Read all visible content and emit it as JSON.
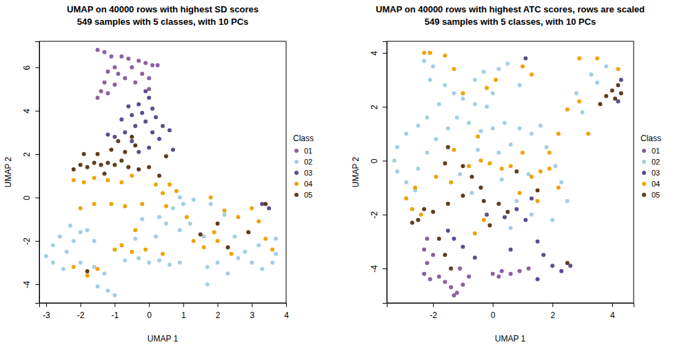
{
  "chart_data": [
    {
      "type": "scatter",
      "title": "UMAP on 40000 rows with highest SD scores",
      "subtitle": "549 samples with 5 classes, with 10 PCs",
      "x_label": "UMAP 1",
      "y_label": "UMAP 2",
      "legend_title": "Class",
      "legend": "right",
      "xlim": [
        -3.2,
        4.0
      ],
      "ylim": [
        -4.86,
        7.2
      ],
      "xticks": [
        -3,
        -2,
        -1,
        0,
        1,
        2,
        3,
        4
      ],
      "yticks": [
        -4,
        -2,
        0,
        2,
        4,
        6
      ],
      "series": [
        {
          "name": "01",
          "color": "#8A5FA5",
          "marker": "circle",
          "x": [
            -1.5,
            -1.3,
            -1.1,
            -0.8,
            -0.6,
            -0.3,
            -0.1,
            0.1,
            0.25,
            -1.0,
            -0.5,
            -1.2,
            -0.9,
            -0.2,
            0.0,
            -1.3,
            -1.0,
            -0.4,
            -1.4,
            -1.5,
            -1.2,
            0.0,
            -0.7
          ],
          "values": [
            6.8,
            6.7,
            6.5,
            6.5,
            6.4,
            6.3,
            6.2,
            6.1,
            6.1,
            6.0,
            6.0,
            5.8,
            5.7,
            5.7,
            5.5,
            5.3,
            5.2,
            5.3,
            4.9,
            4.6,
            4.8,
            5.0,
            5.5
          ]
        },
        {
          "name": "02",
          "color": "#A6CEE3",
          "marker": "circle",
          "x": [
            -3.0,
            -2.8,
            -2.6,
            -2.4,
            -2.2,
            -2.0,
            -1.8,
            -1.6,
            -2.8,
            -2.5,
            -2.0,
            -1.6,
            -1.3,
            -1.2,
            -1.0,
            -1.5,
            -0.7,
            -0.3,
            0.0,
            0.3,
            0.6,
            0.9,
            0.2,
            -0.4,
            0.5,
            0.9,
            0.3,
            -0.2,
            0.7,
            1.0,
            1.3,
            0.9,
            1.2,
            1.7,
            1.7,
            2.0,
            2.3,
            2.6,
            2.8,
            3.0,
            3.3,
            3.6,
            3.7,
            3.2,
            2.5,
            2.2,
            1.8,
            1.6,
            -2.3,
            3.7
          ],
          "values": [
            -2.7,
            -2.2,
            -1.8,
            -2.5,
            -2.0,
            -1.6,
            -1.5,
            -2.0,
            -3.0,
            -3.3,
            -3.0,
            -3.2,
            -3.5,
            -4.3,
            -4.5,
            -4.1,
            -2.9,
            -2.8,
            -3.0,
            -2.9,
            -3.1,
            -3.0,
            -1.8,
            -1.9,
            -1.2,
            -1.5,
            -0.9,
            -1.0,
            -0.5,
            -0.3,
            -0.1,
            0.0,
            -1.2,
            -3.2,
            -4.0,
            -3.0,
            -3.5,
            -2.8,
            -2.5,
            -3.0,
            -3.3,
            -3.0,
            -2.6,
            -2.2,
            -1.8,
            -0.8,
            -0.3,
            -1.8,
            -1.3,
            -1.9
          ]
        },
        {
          "name": "03",
          "color": "#5E4B91",
          "marker": "circle",
          "x": [
            -0.1,
            0.0,
            -0.3,
            -0.6,
            0.1,
            -0.2,
            -0.5,
            0.2,
            -0.8,
            -0.1,
            0.4,
            -0.4,
            0.6,
            -0.7,
            0.1,
            -1.0,
            0.3,
            -0.5,
            -1.2,
            0.0,
            0.7,
            -0.3,
            3.3,
            3.5
          ],
          "values": [
            4.9,
            4.6,
            4.3,
            4.2,
            4.1,
            3.9,
            3.8,
            3.7,
            3.6,
            3.5,
            3.3,
            3.3,
            3.1,
            3.0,
            3.0,
            2.8,
            2.7,
            2.6,
            2.9,
            2.3,
            2.2,
            2.1,
            -0.3,
            -0.5
          ]
        },
        {
          "name": "04",
          "color": "#F0A30A",
          "marker": "circle",
          "x": [
            -2.2,
            -1.9,
            -1.6,
            -1.2,
            -0.8,
            -0.5,
            0.2,
            0.6,
            0.8,
            0.4,
            -2.0,
            -1.6,
            -1.1,
            -0.7,
            -0.2,
            0.5,
            1.1,
            1.8,
            2.2,
            2.6,
            3.0,
            3.6,
            3.4,
            2.0,
            1.6,
            1.3,
            -1.0,
            -0.5,
            -0.1,
            0.4,
            -2.2,
            -1.8,
            -1.5,
            -0.8,
            2.4,
            3.2,
            1.9,
            -0.4
          ],
          "values": [
            0.8,
            0.7,
            0.9,
            0.8,
            0.7,
            1.0,
            0.6,
            0.6,
            0.3,
            0.2,
            -0.5,
            -0.3,
            -0.3,
            -0.4,
            -0.3,
            -0.4,
            -0.9,
            0.0,
            -0.6,
            -0.9,
            -0.5,
            -2.4,
            -1.9,
            -2.0,
            -2.3,
            -2.0,
            -2.4,
            -2.5,
            -2.4,
            -2.6,
            -3.2,
            -3.6,
            -3.3,
            -2.2,
            -2.6,
            -1.1,
            -1.6,
            -1.5
          ]
        },
        {
          "name": "05",
          "color": "#5C3D1E",
          "marker": "circle",
          "x": [
            -2.2,
            -2.0,
            -1.8,
            -1.6,
            -1.4,
            -1.2,
            -1.0,
            -0.8,
            -0.6,
            -0.3,
            0.0,
            -1.5,
            -1.9,
            -1.1,
            -0.7,
            -0.4,
            -0.9,
            -0.5,
            0.3,
            0.5,
            -1.3,
            1.5,
            2.0,
            2.9,
            3.4,
            -1.8,
            2.3
          ],
          "values": [
            1.3,
            1.5,
            1.4,
            1.6,
            1.5,
            1.6,
            1.5,
            1.7,
            1.4,
            1.3,
            1.4,
            2.0,
            2.0,
            2.2,
            2.1,
            2.4,
            2.6,
            2.8,
            1.0,
            1.9,
            1.1,
            -1.7,
            -1.2,
            -1.6,
            -0.3,
            -3.4,
            -2.3
          ]
        }
      ]
    },
    {
      "type": "scatter",
      "title": "UMAP on 40000 rows with highest ATC scores, rows are scaled",
      "subtitle": "549 samples with 5 classes, with 10 PCs",
      "x_label": "UMAP 1",
      "y_label": "UMAP 2",
      "legend_title": "Class",
      "legend": "right",
      "xlim": [
        -3.55,
        4.72
      ],
      "ylim": [
        -5.28,
        4.43
      ],
      "xticks": [
        -2,
        0,
        2,
        4
      ],
      "yticks": [
        -4,
        -2,
        0,
        2,
        4
      ],
      "series": [
        {
          "name": "01",
          "color": "#8A5FA5",
          "marker": "circle",
          "x": [
            -2.2,
            -2.3,
            -2.2,
            -2.3,
            -2.1,
            -1.8,
            -1.6,
            -1.4,
            -1.2,
            -1.3,
            -1.0,
            -0.8,
            -1.1,
            0.0,
            0.3,
            0.6,
            0.9,
            1.2,
            0.2,
            -2.0
          ],
          "values": [
            -2.9,
            -3.3,
            -3.8,
            -4.2,
            -4.4,
            -4.3,
            -4.5,
            -4.7,
            -4.9,
            -5.0,
            -4.6,
            -4.3,
            -4.0,
            -4.2,
            -4.1,
            -4.2,
            -4.1,
            -4.0,
            -4.3,
            -3.5
          ]
        },
        {
          "name": "02",
          "color": "#A6CEE3",
          "marker": "circle",
          "x": [
            -2.3,
            -2.0,
            -2.1,
            -1.6,
            -1.3,
            -1.0,
            -0.6,
            -0.2,
            0.2,
            0.5,
            -0.3,
            0.0,
            -1.8,
            -2.2,
            -2.5,
            -2.9,
            -3.2,
            -3.3,
            -3.2,
            -2.9,
            -2.6,
            -2.5,
            -2.2,
            -1.9,
            -1.5,
            -1.2,
            -0.8,
            -0.4,
            0.0,
            0.4,
            0.9,
            1.3,
            1.6,
            0.6,
            0.2,
            -0.5,
            -1.1,
            -0.7,
            0.3,
            0.8,
            1.2,
            1.8,
            2.1,
            2.3,
            2.5,
            2.0,
            1.3,
            0.6,
            3.0,
            3.5,
            3.8,
            3.3,
            2.8,
            -0.6,
            0.9
          ],
          "values": [
            3.7,
            3.5,
            3.0,
            2.8,
            2.5,
            2.3,
            2.1,
            2.0,
            3.4,
            3.6,
            3.3,
            2.5,
            2.1,
            1.6,
            1.3,
            1.0,
            0.5,
            0.0,
            -0.4,
            -0.8,
            -1.1,
            -0.3,
            0.3,
            0.8,
            1.2,
            1.6,
            1.4,
            1.1,
            1.2,
            1.4,
            1.2,
            1.0,
            1.3,
            0.6,
            0.3,
            0.4,
            -0.5,
            -1.2,
            -0.7,
            -1.5,
            -0.5,
            0.5,
            -0.2,
            -0.8,
            -1.5,
            -2.2,
            -2.0,
            -2.5,
            1.8,
            2.9,
            3.5,
            3.2,
            2.5,
            3.0,
            2.8
          ]
        },
        {
          "name": "03",
          "color": "#5E4B91",
          "marker": "circle",
          "x": [
            -1.5,
            -1.3,
            -1.0,
            -0.6,
            -0.2,
            0.4,
            0.8,
            1.1,
            1.3,
            0.6,
            1.5,
            1.7,
            2.0,
            2.3,
            1.1,
            4.3,
            4.2,
            1.5,
            2.6
          ],
          "values": [
            -2.6,
            -2.9,
            -3.2,
            -3.6,
            -2.0,
            -2.1,
            -1.8,
            -2.2,
            -1.4,
            -3.3,
            -3.0,
            -3.5,
            -3.9,
            -4.1,
            3.8,
            3.0,
            2.2,
            -4.4,
            -3.9
          ]
        },
        {
          "name": "04",
          "color": "#F0A30A",
          "marker": "circle",
          "x": [
            -2.3,
            -2.1,
            -1.6,
            -1.3,
            1.0,
            1.3,
            0.1,
            -1.0,
            -0.2,
            -2.6,
            -2.9,
            -2.7,
            -2.4,
            -1.9,
            -1.4,
            -0.8,
            -0.4,
            -0.1,
            0.3,
            0.6,
            1.0,
            1.3,
            1.6,
            1.9,
            2.2,
            1.5,
            0.9,
            -1.3,
            -0.5,
            2.2,
            2.5,
            2.9,
            3.5,
            4.2,
            2.9,
            -0.6,
            -0.3,
            1.9,
            3.2
          ],
          "values": [
            4.0,
            4.0,
            3.9,
            3.4,
            3.5,
            3.2,
            3.0,
            2.5,
            2.7,
            -1.0,
            -1.4,
            -1.8,
            -2.0,
            -0.6,
            -0.8,
            -0.2,
            0.0,
            -0.1,
            -0.3,
            -0.2,
            0.3,
            -0.6,
            -0.4,
            -0.3,
            -1.0,
            -1.5,
            -1.2,
            0.4,
            0.9,
            1.0,
            1.9,
            2.2,
            3.8,
            3.4,
            3.8,
            -2.7,
            -2.2,
            0.3,
            1.0
          ]
        },
        {
          "name": "05",
          "color": "#5C3D1E",
          "marker": "circle",
          "x": [
            -2.5,
            -2.7,
            -2.3,
            -1.6,
            -1.0,
            -0.7,
            -0.4,
            -1.0,
            -1.5,
            -2.0,
            -0.3,
            0.2,
            0.5,
            -0.1,
            -1.8,
            -1.6,
            -1.4,
            1.5,
            3.8,
            4.0,
            4.2,
            4.3,
            4.1,
            3.6,
            2.5,
            -1.5,
            0.8
          ],
          "values": [
            -2.2,
            -2.3,
            -1.8,
            -0.1,
            -0.2,
            -0.6,
            -1.0,
            -1.3,
            -1.6,
            -1.9,
            -1.5,
            -1.6,
            -1.9,
            -2.4,
            -2.9,
            -3.5,
            -4.0,
            -1.1,
            2.4,
            2.6,
            2.8,
            2.5,
            2.3,
            2.1,
            -3.8,
            0.5,
            -0.4
          ]
        }
      ]
    }
  ]
}
